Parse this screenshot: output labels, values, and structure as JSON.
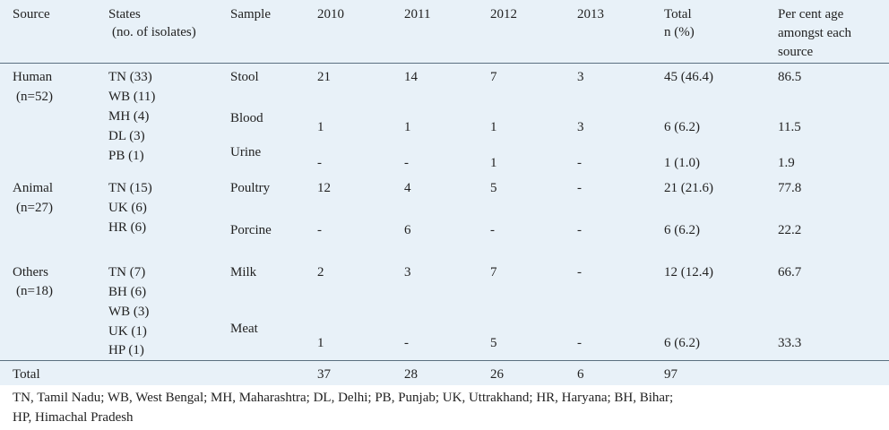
{
  "header": {
    "source": "Source",
    "states_1": "States",
    "states_2": "(no. of isolates)",
    "sample": "Sample",
    "y2010": "2010",
    "y2011": "2011",
    "y2012": "2012",
    "y2013": "2013",
    "total_1": "Total",
    "total_2": "n (%)",
    "pct_1": "Per cent age",
    "pct_2": "amongst each",
    "pct_3": "source"
  },
  "human": {
    "source": "Human",
    "n": "(n=52)",
    "states": [
      "TN (33)",
      "WB (11)",
      "MH (4)",
      "DL (3)",
      "PB (1)"
    ],
    "stool": {
      "sample": "Stool",
      "y2010": "21",
      "y2011": "14",
      "y2012": "7",
      "y2013": "3",
      "total": "45 (46.4)",
      "pct": "86.5"
    },
    "blood": {
      "sample": "Blood",
      "y2010": "1",
      "y2011": "1",
      "y2012": "1",
      "y2013": "3",
      "total": "6 (6.2)",
      "pct": "11.5"
    },
    "urine": {
      "sample": "Urine",
      "y2010": "-",
      "y2011": "-",
      "y2012": "1",
      "y2013": "-",
      "total": "1 (1.0)",
      "pct": "1.9"
    }
  },
  "animal": {
    "source": "Animal",
    "n": "(n=27)",
    "states": [
      "TN (15)",
      "UK (6)",
      "HR (6)"
    ],
    "poultry": {
      "sample": "Poultry",
      "y2010": "12",
      "y2011": "4",
      "y2012": "5",
      "y2013": "-",
      "total": "21 (21.6)",
      "pct": "77.8"
    },
    "porcine": {
      "sample": "Porcine",
      "y2010": "-",
      "y2011": "6",
      "y2012": "-",
      "y2013": "-",
      "total": "6 (6.2)",
      "pct": "22.2"
    }
  },
  "others": {
    "source": "Others",
    "n": "(n=18)",
    "states": [
      "TN (7)",
      "BH (6)",
      "WB (3)",
      "UK (1)",
      "HP (1)"
    ],
    "milk": {
      "sample": "Milk",
      "y2010": "2",
      "y2011": "3",
      "y2012": "7",
      "y2013": "-",
      "total": "12 (12.4)",
      "pct": "66.7"
    },
    "meat": {
      "sample": "Meat",
      "y2010": "1",
      "y2011": "-",
      "y2012": "5",
      "y2013": "-",
      "total": "6 (6.2)",
      "pct": "33.3"
    }
  },
  "totals": {
    "label": "Total",
    "y2010": "37",
    "y2011": "28",
    "y2012": "26",
    "y2013": "6",
    "total": "97"
  },
  "footnote": {
    "line1": "TN, Tamil Nadu; WB, West Bengal; MH, Maharashtra; DL, Delhi; PB, Punjab; UK, Uttrakhand; HR, Haryana; BH, Bihar;",
    "line2": "HP, Himachal Pradesh"
  },
  "colors": {
    "table_bg": "#e8f1f8",
    "rule": "#5a6f80",
    "text": "#222222"
  }
}
